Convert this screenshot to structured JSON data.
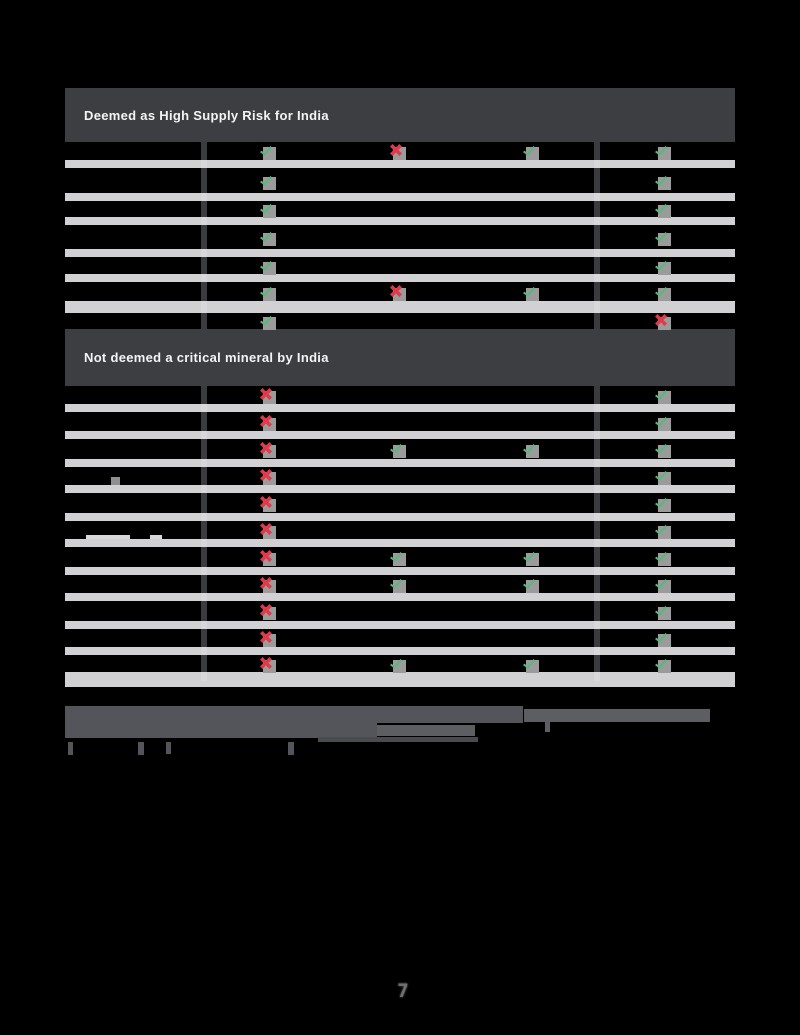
{
  "document": {
    "page_number": "7"
  },
  "table": {
    "colors": {
      "header_background": "#3d3e42",
      "row_stripe": "#ededef",
      "column_divider": "#3a3b3f",
      "check_green": "#57b87b",
      "cross_red": "#e2394a",
      "icon_backdrop_gray": "#9b9b9b"
    },
    "icon_legend": {
      "check": "green-check-icon",
      "cross": "red-cross-icon"
    },
    "sections": [
      {
        "header": "Deemed as High Supply Risk for India",
        "rows": [
          {
            "cells": [
              "check",
              "cross",
              "check",
              "check"
            ]
          },
          {
            "cells": [
              "check",
              "",
              "",
              "check"
            ]
          },
          {
            "cells": [
              "check",
              "",
              "",
              "check"
            ]
          },
          {
            "cells": [
              "check",
              "",
              "",
              "check"
            ]
          },
          {
            "cells": [
              "check",
              "",
              "",
              "check"
            ]
          },
          {
            "cells": [
              "check",
              "cross",
              "check",
              "check"
            ]
          },
          {
            "cells": [
              "check",
              "",
              "",
              "cross"
            ]
          }
        ]
      },
      {
        "header": "Not deemed a critical mineral by India",
        "rows": [
          {
            "cells": [
              "cross",
              "",
              "",
              "check"
            ]
          },
          {
            "cells": [
              "cross",
              "",
              "",
              "check"
            ]
          },
          {
            "cells": [
              "cross",
              "check",
              "check",
              "check"
            ]
          },
          {
            "cells": [
              "cross",
              "",
              "",
              "check"
            ]
          },
          {
            "cells": [
              "cross",
              "",
              "",
              "check"
            ]
          },
          {
            "cells": [
              "cross",
              "",
              "",
              "check"
            ]
          },
          {
            "cells": [
              "cross",
              "check",
              "check",
              "check"
            ]
          },
          {
            "cells": [
              "cross",
              "check",
              "check",
              "check"
            ]
          },
          {
            "cells": [
              "cross",
              "",
              "",
              "check"
            ]
          },
          {
            "cells": [
              "cross",
              "",
              "",
              "check"
            ]
          },
          {
            "cells": [
              "cross",
              "check",
              "check",
              "check"
            ]
          }
        ]
      }
    ]
  },
  "footnote": {
    "text_legible": false
  }
}
